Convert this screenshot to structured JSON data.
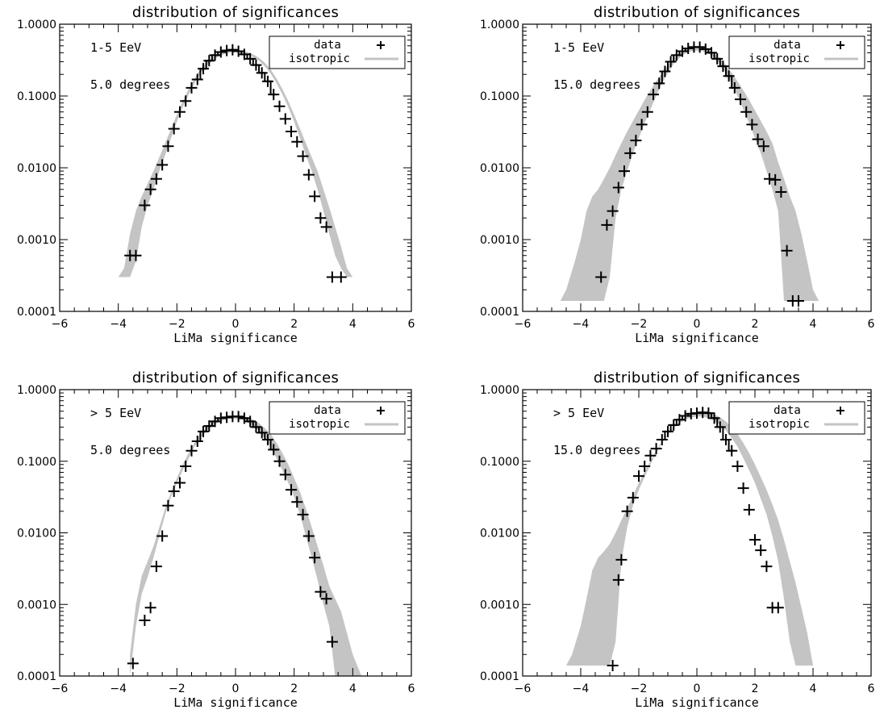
{
  "chart_data": [
    {
      "type": "scatter",
      "title": "distribution of significances",
      "xlabel": "LiMa significance",
      "ylabel": "",
      "xlim": [
        -6,
        6
      ],
      "ylim": [
        0.0001,
        1.0
      ],
      "yscale": "log",
      "xticks": [
        "−6",
        "−4",
        "−2",
        "0",
        "2",
        "4",
        "6"
      ],
      "yticks": [
        "1.0000",
        "0.1000",
        "0.0100",
        "0.0010",
        "0.0001"
      ],
      "annotations": [
        "1-5 EeV",
        "5.0 degrees"
      ],
      "legend": {
        "placement": "top-right",
        "entries": [
          "data",
          "isotropic"
        ]
      },
      "series": [
        {
          "name": "data",
          "x": [
            -3.6,
            -3.4,
            -3.1,
            -2.9,
            -2.7,
            -2.5,
            -2.3,
            -2.1,
            -1.9,
            -1.7,
            -1.5,
            -1.3,
            -1.1,
            -0.9,
            -0.7,
            -0.5,
            -0.3,
            -0.1,
            0.1,
            0.3,
            0.5,
            0.7,
            0.9,
            1.1,
            1.3,
            1.5,
            1.7,
            1.9,
            2.1,
            2.3,
            2.5,
            2.7,
            2.9,
            3.1,
            3.3,
            3.6
          ],
          "y": [
            0.0006,
            0.0006,
            0.003,
            0.005,
            0.007,
            0.011,
            0.02,
            0.035,
            0.06,
            0.085,
            0.13,
            0.17,
            0.24,
            0.31,
            0.37,
            0.41,
            0.43,
            0.44,
            0.42,
            0.38,
            0.33,
            0.27,
            0.21,
            0.16,
            0.105,
            0.072,
            0.048,
            0.032,
            0.023,
            0.0145,
            0.008,
            0.004,
            0.002,
            0.0015,
            0.0003,
            0.0003
          ]
        },
        {
          "name": "isotropic",
          "x": [
            -4.0,
            -3.8,
            -3.6,
            -3.4,
            -3.2,
            -3.0,
            -2.8,
            -2.6,
            -2.4,
            -2.2,
            -2.0,
            -1.8,
            -1.6,
            -1.4,
            -1.2,
            -1.0,
            -0.8,
            -0.6,
            -0.4,
            -0.2,
            0.0,
            0.2,
            0.4,
            0.6,
            0.8,
            1.0,
            1.2,
            1.4,
            1.6,
            1.8,
            2.0,
            2.2,
            2.4,
            2.6,
            2.8,
            3.0,
            3.2,
            3.4,
            3.6,
            3.8,
            4.0,
            4.5
          ],
          "ylow": [
            0.0003,
            0.0003,
            0.0003,
            0.0005,
            0.0015,
            0.003,
            0.005,
            0.009,
            0.015,
            0.026,
            0.044,
            0.07,
            0.105,
            0.15,
            0.205,
            0.26,
            0.31,
            0.35,
            0.38,
            0.4,
            0.41,
            0.4,
            0.38,
            0.35,
            0.31,
            0.26,
            0.205,
            0.15,
            0.105,
            0.07,
            0.044,
            0.026,
            0.015,
            0.009,
            0.005,
            0.0025,
            0.0012,
            0.0006,
            0.0004,
            0.0003,
            0.0003,
            0.0003
          ],
          "yhigh": [
            0.0003,
            0.0004,
            0.0012,
            0.0025,
            0.004,
            0.006,
            0.009,
            0.014,
            0.022,
            0.035,
            0.055,
            0.085,
            0.125,
            0.175,
            0.235,
            0.29,
            0.34,
            0.38,
            0.41,
            0.43,
            0.44,
            0.43,
            0.41,
            0.38,
            0.34,
            0.29,
            0.235,
            0.175,
            0.125,
            0.085,
            0.055,
            0.035,
            0.022,
            0.014,
            0.009,
            0.005,
            0.0028,
            0.0015,
            0.0008,
            0.0004,
            0.0003,
            0.0003
          ]
        }
      ]
    },
    {
      "type": "scatter",
      "title": "distribution of significances",
      "xlabel": "LiMa significance",
      "ylabel": "",
      "xlim": [
        -6,
        6
      ],
      "ylim": [
        0.0001,
        1.0
      ],
      "yscale": "log",
      "xticks": [
        "−6",
        "−4",
        "−2",
        "0",
        "2",
        "4",
        "6"
      ],
      "yticks": [
        "1.0000",
        "0.1000",
        "0.0100",
        "0.0010",
        "0.0001"
      ],
      "annotations": [
        "1-5 EeV",
        "15.0 degrees"
      ],
      "legend": {
        "placement": "top-right",
        "entries": [
          "data",
          "isotropic"
        ]
      },
      "series": [
        {
          "name": "data",
          "x": [
            -3.3,
            -3.1,
            -2.9,
            -2.7,
            -2.5,
            -2.3,
            -2.1,
            -1.9,
            -1.7,
            -1.5,
            -1.3,
            -1.1,
            -0.9,
            -0.7,
            -0.5,
            -0.3,
            -0.1,
            0.1,
            0.3,
            0.5,
            0.7,
            0.9,
            1.1,
            1.3,
            1.5,
            1.7,
            1.9,
            2.1,
            2.3,
            2.5,
            2.7,
            2.9,
            3.1,
            3.3,
            3.5
          ],
          "y": [
            0.0003,
            0.0016,
            0.0025,
            0.0053,
            0.009,
            0.016,
            0.024,
            0.04,
            0.06,
            0.105,
            0.15,
            0.22,
            0.3,
            0.37,
            0.42,
            0.46,
            0.48,
            0.48,
            0.45,
            0.4,
            0.33,
            0.26,
            0.19,
            0.13,
            0.09,
            0.06,
            0.04,
            0.025,
            0.02,
            0.007,
            0.0068,
            0.0046,
            0.0007,
            0.00014,
            0.00014
          ]
        },
        {
          "name": "isotropic",
          "x": [
            -4.7,
            -4.5,
            -4.2,
            -4.0,
            -3.8,
            -3.6,
            -3.4,
            -3.2,
            -3.0,
            -2.8,
            -2.6,
            -2.4,
            -2.2,
            -2.0,
            -1.8,
            -1.6,
            -1.4,
            -1.2,
            -1.0,
            -0.8,
            -0.6,
            -0.4,
            -0.2,
            0.0,
            0.2,
            0.4,
            0.6,
            0.8,
            1.0,
            1.2,
            1.4,
            1.6,
            1.8,
            2.0,
            2.2,
            2.4,
            2.6,
            2.8,
            3.0,
            3.2,
            3.4,
            3.6,
            3.8,
            4.0,
            4.2,
            4.4
          ],
          "ylow": [
            0.00014,
            0.00014,
            0.00014,
            0.00014,
            0.00014,
            0.00014,
            0.00014,
            0.00014,
            0.0003,
            0.002,
            0.005,
            0.009,
            0.016,
            0.026,
            0.042,
            0.065,
            0.1,
            0.15,
            0.21,
            0.28,
            0.34,
            0.39,
            0.42,
            0.43,
            0.42,
            0.39,
            0.34,
            0.28,
            0.21,
            0.15,
            0.1,
            0.065,
            0.042,
            0.026,
            0.016,
            0.009,
            0.005,
            0.0025,
            0.00014,
            0.00014,
            0.00014,
            0.00014,
            0.00014,
            0.00014,
            0.00014,
            0.00014
          ],
          "yhigh": [
            0.00014,
            0.0002,
            0.0005,
            0.001,
            0.0025,
            0.004,
            0.005,
            0.007,
            0.01,
            0.015,
            0.022,
            0.032,
            0.045,
            0.063,
            0.088,
            0.12,
            0.16,
            0.21,
            0.27,
            0.33,
            0.39,
            0.44,
            0.48,
            0.5,
            0.48,
            0.44,
            0.39,
            0.33,
            0.27,
            0.21,
            0.16,
            0.12,
            0.088,
            0.063,
            0.045,
            0.032,
            0.022,
            0.012,
            0.007,
            0.004,
            0.0025,
            0.0012,
            0.0005,
            0.0002,
            0.00014,
            0.00014
          ]
        }
      ]
    },
    {
      "type": "scatter",
      "title": "distribution of significances",
      "xlabel": "LiMa significance",
      "ylabel": "",
      "xlim": [
        -6,
        6
      ],
      "ylim": [
        0.0001,
        1.0
      ],
      "yscale": "log",
      "xticks": [
        "−6",
        "−4",
        "−2",
        "0",
        "2",
        "4",
        "6"
      ],
      "yticks": [
        "1.0000",
        "0.1000",
        "0.0100",
        "0.0010",
        "0.0001"
      ],
      "annotations": [
        "> 5 EeV",
        "5.0 degrees"
      ],
      "legend": {
        "placement": "top-right",
        "entries": [
          "data",
          "isotropic"
        ]
      },
      "series": [
        {
          "name": "data",
          "x": [
            -3.5,
            -3.1,
            -2.9,
            -2.7,
            -2.5,
            -2.3,
            -2.1,
            -1.9,
            -1.7,
            -1.5,
            -1.3,
            -1.1,
            -0.9,
            -0.7,
            -0.5,
            -0.3,
            -0.1,
            0.1,
            0.3,
            0.5,
            0.7,
            0.9,
            1.1,
            1.3,
            1.5,
            1.7,
            1.9,
            2.1,
            2.3,
            2.5,
            2.7,
            2.9,
            3.1,
            3.3
          ],
          "y": [
            0.00015,
            0.0006,
            0.0009,
            0.0034,
            0.009,
            0.024,
            0.038,
            0.05,
            0.085,
            0.14,
            0.19,
            0.26,
            0.31,
            0.36,
            0.4,
            0.41,
            0.42,
            0.42,
            0.4,
            0.36,
            0.3,
            0.25,
            0.2,
            0.145,
            0.1,
            0.065,
            0.04,
            0.027,
            0.018,
            0.009,
            0.0045,
            0.0015,
            0.0012,
            0.0003
          ]
        },
        {
          "name": "isotropic",
          "x": [
            -3.6,
            -3.4,
            -3.2,
            -3.0,
            -2.8,
            -2.6,
            -2.4,
            -2.2,
            -2.0,
            -1.8,
            -1.6,
            -1.4,
            -1.2,
            -1.0,
            -0.8,
            -0.6,
            -0.4,
            -0.2,
            0.0,
            0.2,
            0.4,
            0.6,
            0.8,
            1.0,
            1.2,
            1.4,
            1.6,
            1.8,
            2.0,
            2.2,
            2.4,
            2.6,
            2.8,
            3.0,
            3.2,
            3.4,
            3.6,
            3.8,
            4.0,
            4.3
          ],
          "ylow": [
            0.0001,
            0.0005,
            0.0014,
            0.0024,
            0.0045,
            0.009,
            0.018,
            0.032,
            0.05,
            0.075,
            0.11,
            0.16,
            0.21,
            0.26,
            0.31,
            0.35,
            0.38,
            0.39,
            0.39,
            0.38,
            0.35,
            0.31,
            0.26,
            0.21,
            0.16,
            0.11,
            0.075,
            0.05,
            0.032,
            0.018,
            0.009,
            0.0045,
            0.0022,
            0.001,
            0.0005,
            0.0001,
            0.0001,
            0.0001,
            0.0001,
            0.0001
          ],
          "yhigh": [
            0.0002,
            0.001,
            0.0025,
            0.004,
            0.0065,
            0.012,
            0.022,
            0.037,
            0.058,
            0.09,
            0.13,
            0.18,
            0.24,
            0.29,
            0.34,
            0.38,
            0.41,
            0.43,
            0.44,
            0.43,
            0.41,
            0.38,
            0.34,
            0.29,
            0.24,
            0.18,
            0.13,
            0.09,
            0.058,
            0.037,
            0.022,
            0.012,
            0.0065,
            0.0035,
            0.0018,
            0.0012,
            0.0008,
            0.0004,
            0.0002,
            0.0001
          ]
        }
      ]
    },
    {
      "type": "scatter",
      "title": "distribution of significances",
      "xlabel": "LiMa significance",
      "ylabel": "",
      "xlim": [
        -6,
        6
      ],
      "ylim": [
        0.0001,
        1.0
      ],
      "yscale": "log",
      "xticks": [
        "−6",
        "−4",
        "−2",
        "0",
        "2",
        "4",
        "6"
      ],
      "yticks": [
        "1.0000",
        "0.1000",
        "0.0100",
        "0.0010",
        "0.0001"
      ],
      "annotations": [
        "> 5 EeV",
        "15.0 degrees"
      ],
      "legend": {
        "placement": "top-right",
        "entries": [
          "data",
          "isotropic"
        ]
      },
      "series": [
        {
          "name": "data",
          "x": [
            -2.9,
            -2.7,
            -2.6,
            -2.4,
            -2.2,
            -2.0,
            -1.8,
            -1.6,
            -1.4,
            -1.2,
            -1.0,
            -0.8,
            -0.6,
            -0.4,
            -0.2,
            0.0,
            0.2,
            0.4,
            0.6,
            0.8,
            1.0,
            1.2,
            1.4,
            1.6,
            1.8,
            2.0,
            2.2,
            2.4,
            2.6,
            2.8
          ],
          "y": [
            0.00014,
            0.0022,
            0.0042,
            0.02,
            0.031,
            0.062,
            0.085,
            0.12,
            0.15,
            0.2,
            0.26,
            0.32,
            0.38,
            0.43,
            0.46,
            0.47,
            0.48,
            0.47,
            0.4,
            0.3,
            0.2,
            0.14,
            0.085,
            0.042,
            0.021,
            0.008,
            0.0057,
            0.0034,
            0.0009,
            0.0009
          ]
        },
        {
          "name": "isotropic",
          "x": [
            -4.5,
            -4.3,
            -4.0,
            -3.8,
            -3.6,
            -3.4,
            -3.2,
            -3.0,
            -2.8,
            -2.6,
            -2.4,
            -2.2,
            -2.0,
            -1.8,
            -1.6,
            -1.4,
            -1.2,
            -1.0,
            -0.8,
            -0.6,
            -0.4,
            -0.2,
            0.0,
            0.2,
            0.4,
            0.6,
            0.8,
            1.0,
            1.2,
            1.4,
            1.6,
            1.8,
            2.0,
            2.2,
            2.4,
            2.6,
            2.8,
            3.0,
            3.2,
            3.4,
            3.6,
            3.8,
            4.0,
            4.2
          ],
          "ylow": [
            0.00014,
            0.00014,
            0.00014,
            0.00014,
            0.00014,
            0.00014,
            0.00014,
            0.00014,
            0.0003,
            0.004,
            0.012,
            0.024,
            0.04,
            0.06,
            0.09,
            0.13,
            0.18,
            0.23,
            0.29,
            0.34,
            0.38,
            0.41,
            0.42,
            0.42,
            0.4,
            0.37,
            0.32,
            0.27,
            0.21,
            0.16,
            0.11,
            0.075,
            0.05,
            0.03,
            0.018,
            0.009,
            0.004,
            0.0012,
            0.0003,
            0.00014,
            0.00014,
            0.00014,
            0.00014,
            0.00014
          ],
          "yhigh": [
            0.00014,
            0.0002,
            0.0005,
            0.0012,
            0.003,
            0.0045,
            0.0055,
            0.007,
            0.01,
            0.015,
            0.022,
            0.033,
            0.05,
            0.072,
            0.1,
            0.14,
            0.19,
            0.24,
            0.3,
            0.36,
            0.41,
            0.45,
            0.48,
            0.49,
            0.48,
            0.45,
            0.41,
            0.36,
            0.3,
            0.24,
            0.18,
            0.13,
            0.09,
            0.06,
            0.04,
            0.025,
            0.015,
            0.008,
            0.004,
            0.002,
            0.0009,
            0.0004,
            0.00014,
            0.00014
          ]
        }
      ]
    }
  ]
}
